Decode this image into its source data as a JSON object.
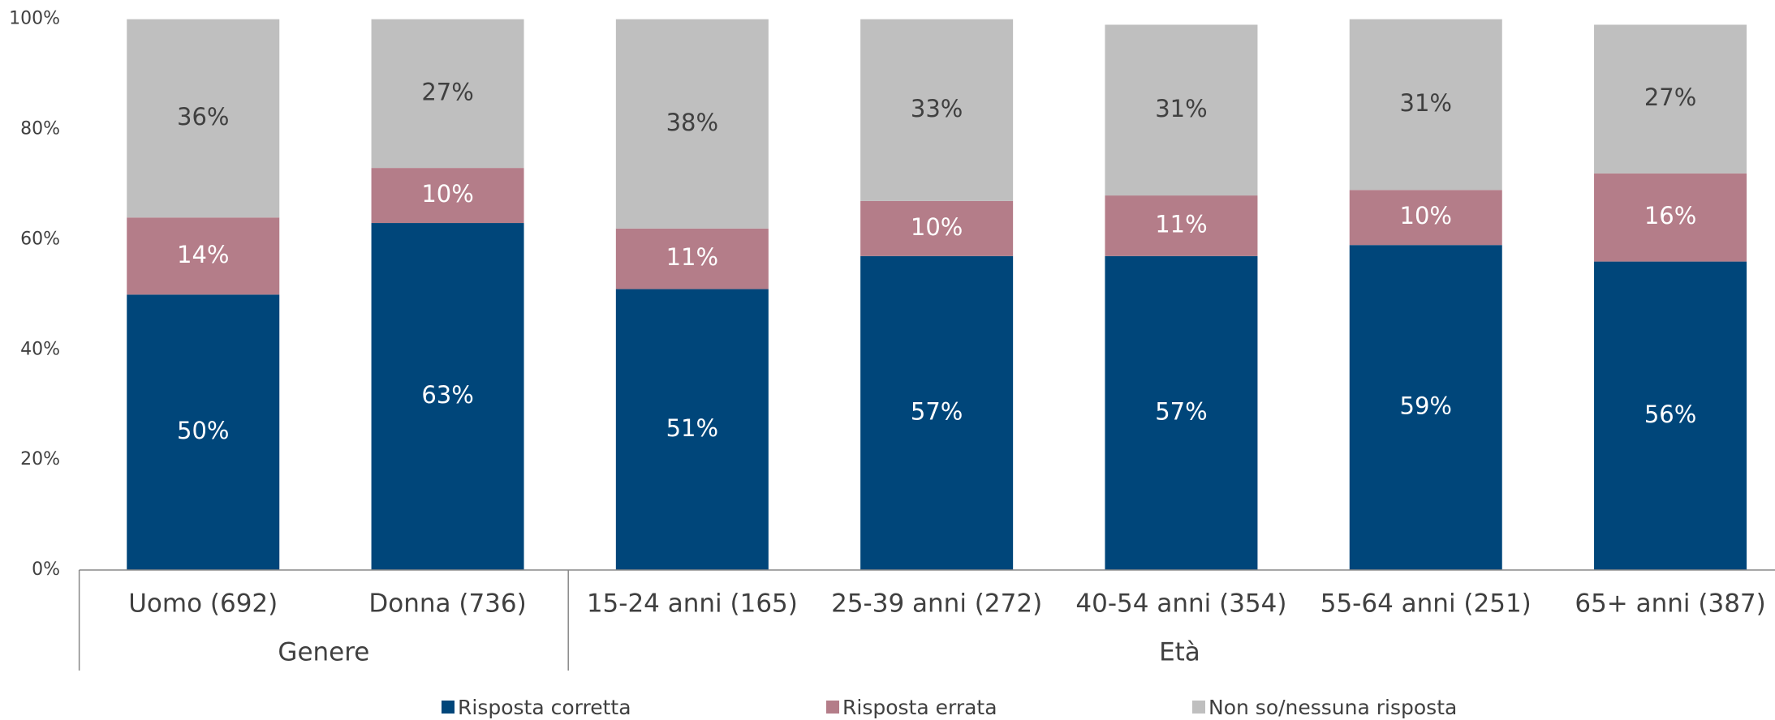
{
  "chart_data": {
    "type": "stacked_bar",
    "categories": [
      "Uomo (692)",
      "Donna (736)",
      "15-24 anni (165)",
      "25-39 anni (272)",
      "40-54 anni (354)",
      "55-64 anni (251)",
      "65+ anni (387)"
    ],
    "groups": [
      {
        "name": "Genere",
        "size": 2
      },
      {
        "name": "Età",
        "size": 5
      }
    ],
    "series": [
      {
        "name": "Risposta corretta",
        "color": "#00467a",
        "values": [
          50,
          63,
          51,
          57,
          57,
          59,
          56
        ],
        "value_labels": [
          "50%",
          "63%",
          "51%",
          "57%",
          "57%",
          "59%",
          "56%"
        ]
      },
      {
        "name": "Risposta errata",
        "color": "#b47d89",
        "values": [
          14,
          10,
          11,
          10,
          11,
          10,
          16
        ],
        "value_labels": [
          "14%",
          "10%",
          "11%",
          "10%",
          "11%",
          "10%",
          "16%"
        ]
      },
      {
        "name": "Non so/nessuna risposta",
        "color": "#bfbfbf",
        "values": [
          36,
          27,
          38,
          33,
          31,
          31,
          27
        ],
        "value_labels": [
          "36%",
          "27%",
          "38%",
          "33%",
          "31%",
          "31%",
          "27%"
        ]
      }
    ],
    "ylim": [
      0,
      100
    ],
    "yticks": [
      {
        "value": 0,
        "label": "0%"
      },
      {
        "value": 20,
        "label": "20%"
      },
      {
        "value": 40,
        "label": "40%"
      },
      {
        "value": 60,
        "label": "60%"
      },
      {
        "value": 80,
        "label": "80%"
      },
      {
        "value": 100,
        "label": "100%"
      }
    ],
    "legend": "bottom"
  }
}
